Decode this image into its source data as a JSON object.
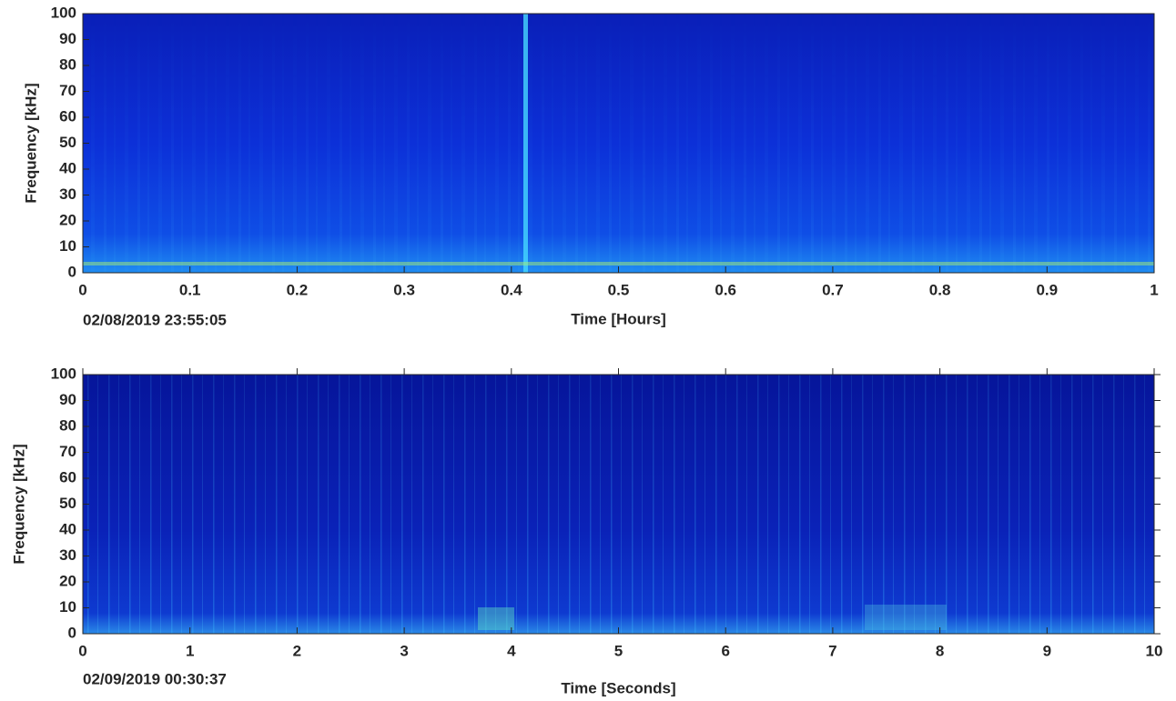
{
  "chart_data": [
    {
      "type": "spectrogram",
      "xlabel": "Time [Hours]",
      "ylabel": "Frequency [kHz]",
      "annotation": "02/08/2019 23:55:05",
      "xlim": [
        0,
        1
      ],
      "xticks": [
        0,
        0.1,
        0.2,
        0.3,
        0.4,
        0.5,
        0.6,
        0.7,
        0.8,
        0.9,
        1
      ],
      "ylim": [
        0,
        100
      ],
      "yticks": [
        0,
        10,
        20,
        30,
        40,
        50,
        60,
        70,
        80,
        90,
        100
      ]
    },
    {
      "type": "spectrogram",
      "xlabel": "Time [Seconds]",
      "ylabel": "Frequency [kHz]",
      "annotation": "02/09/2019 00:30:37",
      "xlim": [
        0,
        10
      ],
      "xticks": [
        0,
        1,
        2,
        3,
        4,
        5,
        6,
        7,
        8,
        9,
        10
      ],
      "ylim": [
        0,
        100
      ],
      "yticks": [
        0,
        10,
        20,
        30,
        40,
        50,
        60,
        70,
        80,
        90,
        100
      ]
    }
  ]
}
